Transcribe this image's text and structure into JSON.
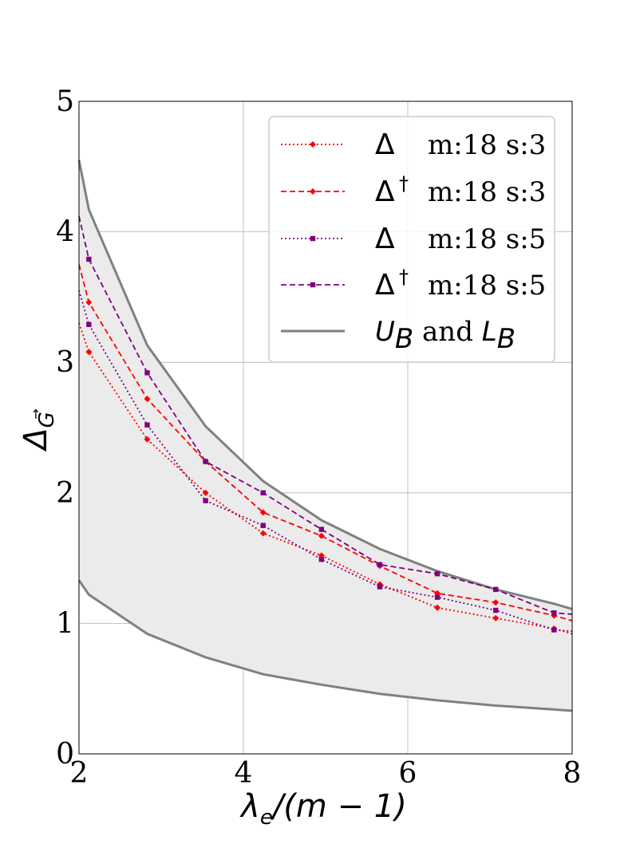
{
  "chart_data": {
    "type": "line",
    "xlabel": "λe/(m − 1)",
    "xlabel_parts": {
      "main": "λ",
      "sub": "e",
      "rest": "/(m − 1)"
    },
    "ylabel": "ΔG⃗",
    "ylabel_parts": {
      "main": "Δ",
      "sub": "G",
      "arrow": "→"
    },
    "xlim": [
      2,
      8
    ],
    "ylim": [
      0,
      5
    ],
    "xticks": [
      2,
      4,
      6,
      8
    ],
    "yticks": [
      0,
      1,
      2,
      3,
      4,
      5
    ],
    "grid": true,
    "legend_position": "top-right",
    "band": {
      "label": "UB and LB",
      "label_parts": {
        "u": "U",
        "u_sub": "B",
        "and": "and",
        "l": "L",
        "l_sub": "B"
      },
      "color": "#808080",
      "fill": "#ebebeb",
      "x": [
        2.0,
        2.12,
        2.83,
        3.54,
        4.24,
        4.95,
        5.66,
        6.36,
        7.07,
        7.78,
        8.0
      ],
      "upper": [
        4.55,
        4.17,
        3.13,
        2.51,
        2.09,
        1.79,
        1.57,
        1.4,
        1.26,
        1.15,
        1.11
      ],
      "lower": [
        1.33,
        1.22,
        0.92,
        0.74,
        0.61,
        0.53,
        0.46,
        0.41,
        0.37,
        0.34,
        0.33
      ]
    },
    "series": [
      {
        "name": "Δ m:18 s:3",
        "symbol": "Δ",
        "dagger": "",
        "text": "m:18 s:3",
        "color": "#ff0000",
        "style": "dotted",
        "marker": "diamond",
        "x": [
          2.0,
          2.12,
          2.83,
          3.54,
          4.24,
          4.95,
          5.66,
          6.36,
          7.07,
          7.78,
          8.0
        ],
        "y": [
          3.3,
          3.08,
          2.41,
          2.0,
          1.69,
          1.52,
          1.3,
          1.12,
          1.04,
          0.96,
          0.92
        ],
        "marker_idx": [
          1,
          2,
          3,
          4,
          5,
          6,
          7,
          8,
          9
        ]
      },
      {
        "name": "Δ† m:18 s:3",
        "symbol": "Δ",
        "dagger": "†",
        "text": "m:18 s:3",
        "color": "#ff0000",
        "style": "dashed",
        "marker": "diamond",
        "x": [
          2.0,
          2.12,
          2.83,
          3.54,
          4.24,
          4.95,
          5.66,
          6.36,
          7.07,
          7.78,
          8.0
        ],
        "y": [
          3.75,
          3.46,
          2.72,
          2.24,
          1.85,
          1.67,
          1.44,
          1.23,
          1.16,
          1.06,
          1.02
        ],
        "marker_idx": [
          1,
          2,
          3,
          4,
          5,
          6,
          7,
          8,
          9
        ]
      },
      {
        "name": "Δ m:18 s:5",
        "symbol": "Δ",
        "dagger": "",
        "text": "m:18 s:5",
        "color": "#800080",
        "style": "dotted",
        "marker": "square",
        "x": [
          2.0,
          2.12,
          2.83,
          3.54,
          4.24,
          4.95,
          5.66,
          6.36,
          7.07,
          7.78,
          8.0
        ],
        "y": [
          3.55,
          3.29,
          2.52,
          1.94,
          1.75,
          1.49,
          1.28,
          1.2,
          1.1,
          0.95,
          0.94
        ],
        "marker_idx": [
          1,
          2,
          3,
          4,
          5,
          6,
          7,
          8,
          9
        ]
      },
      {
        "name": "Δ† m:18 s:5",
        "symbol": "Δ",
        "dagger": "†",
        "text": "m:18 s:5",
        "color": "#800080",
        "style": "dashed",
        "marker": "square",
        "x": [
          2.0,
          2.12,
          2.83,
          3.54,
          4.24,
          4.95,
          5.66,
          6.36,
          7.07,
          7.78,
          8.0
        ],
        "y": [
          4.12,
          3.79,
          2.92,
          2.24,
          2.0,
          1.72,
          1.45,
          1.38,
          1.26,
          1.08,
          1.07
        ],
        "marker_idx": [
          1,
          2,
          3,
          4,
          5,
          6,
          7,
          8,
          9
        ]
      }
    ]
  }
}
